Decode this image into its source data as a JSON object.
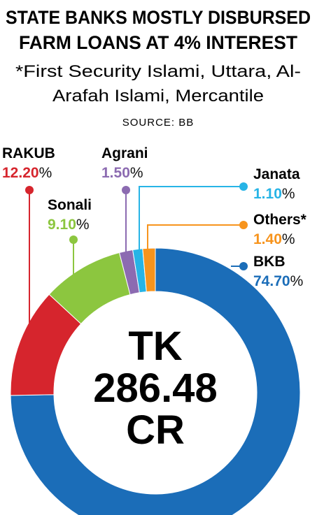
{
  "chart_data": {
    "type": "donut",
    "title": [
      "STATE BANKS MOSTLY DISBURSED",
      "FARM LOANS AT 4% INTEREST"
    ],
    "subtitle": [
      "*First Security Islami, Uttara, Al-",
      "Arafah Islami, Mercantile"
    ],
    "source": "SOURCE: BB",
    "center_label": [
      "TK",
      "286.48",
      "CR"
    ],
    "unit": "%",
    "categories": [
      "BKB",
      "RAKUB",
      "Sonali",
      "Agrani",
      "Janata",
      "Others*"
    ],
    "values": [
      74.7,
      12.2,
      9.1,
      1.5,
      1.1,
      1.4
    ],
    "value_labels": [
      "74.70",
      "12.20",
      "9.10",
      "1.50",
      "1.10",
      "1.40"
    ],
    "colors": [
      "#1b6db8",
      "#d6252d",
      "#8cc63f",
      "#8c6bb1",
      "#27b4e6",
      "#f7941d"
    ]
  }
}
